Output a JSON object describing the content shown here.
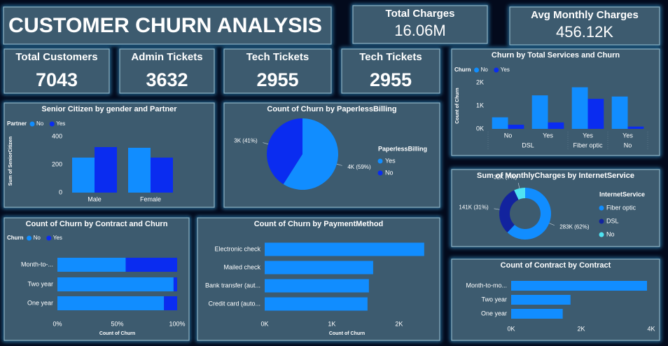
{
  "header": {
    "title": "CUSTOMER CHURN ANALYSIS"
  },
  "kpis": [
    {
      "label": "Total Charges",
      "value": "16.06M"
    },
    {
      "label": "Avg Monthly Charges",
      "value": "456.12K"
    },
    {
      "label": "Total Customers",
      "value": 7043
    },
    {
      "label": "Admin Tickets",
      "value": 3632
    },
    {
      "label": "Tech Tickets",
      "value": 2955
    },
    {
      "label": "Tech Tickets",
      "value": 2955
    }
  ],
  "chart_data": [
    {
      "type": "bar",
      "title": "Senior Citizen by gender and Partner",
      "legend_title": "Partner",
      "categories": [
        "Male",
        "Female"
      ],
      "y_label": "Sum of SeniorCitizen",
      "series": [
        {
          "name": "No",
          "color": "#118dff",
          "values": [
            250,
            320
          ]
        },
        {
          "name": "Yes",
          "color": "#0a2cf0",
          "values": [
            325,
            250
          ]
        }
      ],
      "ylim": [
        0,
        450
      ],
      "yticks": [
        0,
        200,
        400
      ]
    },
    {
      "type": "pie",
      "title": "Count of Churn by PaperlessBilling",
      "legend_title": "PaperlessBilling",
      "categories": [
        "Yes",
        "No"
      ],
      "values": [
        59,
        41
      ],
      "value_labels": [
        "4K (59%)",
        "3K (41%)"
      ],
      "colors": [
        "#118dff",
        "#0a2cf0"
      ]
    },
    {
      "type": "bar",
      "title": "Churn by Total Services and Churn",
      "legend_title": "Churn",
      "categories": [
        "No",
        "Yes",
        "Yes",
        "Yes"
      ],
      "groups": [
        {
          "label": "DSL",
          "count": 2
        },
        {
          "label": "Fiber optic",
          "count": 1
        },
        {
          "label": "No",
          "count": 1
        }
      ],
      "y_label": "Count of Churn",
      "series": [
        {
          "name": "No",
          "color": "#118dff",
          "values": [
            500,
            1450,
            1800,
            1400
          ]
        },
        {
          "name": "Yes",
          "color": "#0a2cf0",
          "values": [
            180,
            280,
            1300,
            100
          ]
        }
      ],
      "ylim": [
        0,
        2000
      ],
      "yticks": [
        {
          "value": 0,
          "label": "0K"
        },
        {
          "value": 1000,
          "label": "1K"
        },
        {
          "value": 2000,
          "label": "2K"
        }
      ]
    },
    {
      "type": "donut",
      "title": "Sum of MonthlyCharges by InternetService",
      "legend_title": "InternetService",
      "categories": [
        "Fiber optic",
        "DSL",
        "No"
      ],
      "values": [
        283000,
        141000,
        32000
      ],
      "value_labels": [
        "283K (62%)",
        "141K (31%)",
        "32K (7%)"
      ],
      "colors": [
        "#118dff",
        "#12239e",
        "#4fe3f2"
      ]
    },
    {
      "type": "hbar",
      "stacked": true,
      "title": "Count of Churn by Contract and Churn",
      "legend_title": "Churn",
      "categories": [
        "Month-to-...",
        "Two year",
        "One year"
      ],
      "x_label": "Count of Churn",
      "series": [
        {
          "name": "No",
          "color": "#118dff",
          "values": [
            57,
            97,
            89
          ]
        },
        {
          "name": "Yes",
          "color": "#0a2cf0",
          "values": [
            43,
            3,
            11
          ]
        }
      ],
      "xlim": [
        0,
        100
      ],
      "xticks": [
        {
          "value": 0,
          "label": "0%"
        },
        {
          "value": 50,
          "label": "50%"
        },
        {
          "value": 100,
          "label": "100%"
        }
      ]
    },
    {
      "type": "hbar",
      "title": "Count of Churn by PaymentMethod",
      "categories": [
        "Electronic check",
        "Mailed check",
        "Bank transfer (aut...",
        "Credit card (auto..."
      ],
      "x_label": "Count of Churn",
      "color": "#118dff",
      "values": [
        2375,
        1615,
        1552,
        1531
      ],
      "xlim": [
        0,
        2450
      ],
      "xticks": [
        {
          "value": 0,
          "label": "0K"
        },
        {
          "value": 1000,
          "label": "1K"
        },
        {
          "value": 2000,
          "label": "2K"
        }
      ]
    },
    {
      "type": "hbar",
      "title": "Count of Contract by Contract",
      "categories": [
        "Month-to-mo...",
        "Two year",
        "One year"
      ],
      "color": "#118dff",
      "values": [
        3880,
        1695,
        1473
      ],
      "xlim": [
        0,
        4000
      ],
      "xticks": [
        {
          "value": 0,
          "label": "0K"
        },
        {
          "value": 2000,
          "label": "2K"
        },
        {
          "value": 4000,
          "label": "4K"
        }
      ]
    }
  ]
}
